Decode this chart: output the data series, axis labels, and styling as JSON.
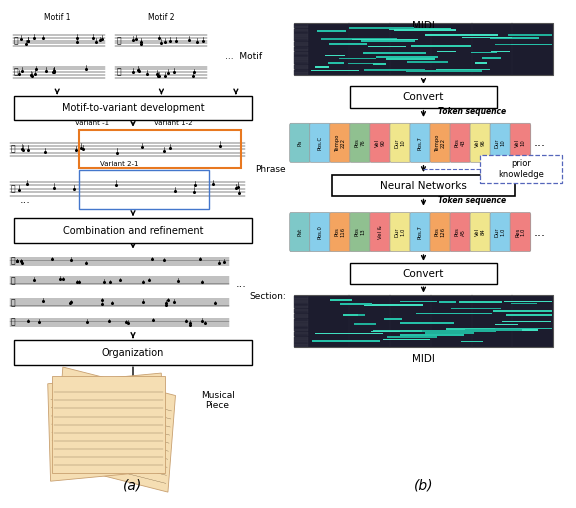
{
  "panel_a_label": "(a)",
  "panel_b_label": "(b)",
  "boxes": {
    "motif_to_variant": "Motif-to-variant development",
    "combination": "Combination and refinement",
    "organization": "Organization",
    "convert_top": "Convert",
    "neural_networks": "Neural Networks",
    "convert_bottom": "Convert"
  },
  "labels": {
    "motif": "Motif",
    "phrase": "Phrase",
    "section": "Section:",
    "musical_piece": "Musical\nPiece",
    "midi_top": "MIDI",
    "midi_bottom": "MIDI",
    "token_seq_top": "Token sequence",
    "token_seq_bottom": "Token sequence",
    "prior_knowledge": "prior\nknowledge",
    "variant_1_1": "Variant -1",
    "variant_1_2": "Variant 1-2",
    "variant_2_1": "Variant 2-1",
    "motif_1": "Motif 1",
    "motif_2": "Motif 2"
  },
  "token_colors_top": [
    "#7ec8c8",
    "#87ceeb",
    "#f4a460",
    "#90c090",
    "#f08080",
    "#f0e68c",
    "#87ceeb",
    "#f4a460",
    "#f08080",
    "#f0e68c",
    "#87ceeb",
    "#f08080"
  ],
  "token_labels_top": [
    "Pa",
    "Pos.C",
    "Tempo\n222",
    "Pos\n76",
    "Vel\n90",
    "Dur\n10",
    "Pos.7",
    "Tempo\n222",
    "Pos\n43",
    "Vel\n96",
    "Dur\n10",
    "Vel\n10"
  ],
  "token_colors_bottom": [
    "#7ec8c8",
    "#87ceeb",
    "#f4a460",
    "#90c090",
    "#f08080",
    "#f0e68c",
    "#87ceeb",
    "#f4a460",
    "#f08080",
    "#f0e68c",
    "#87ceeb",
    "#f08080"
  ],
  "token_labels_bottom": [
    "Pat",
    "Pos.0",
    "Pos\n116",
    "Pos\n13",
    "Vel &",
    "Dur\n1.0",
    "Pos.7",
    "Pos\n126",
    "Pos\nA5",
    "Vel\n84",
    "Dur\n1.0",
    "Res\n1.0"
  ]
}
